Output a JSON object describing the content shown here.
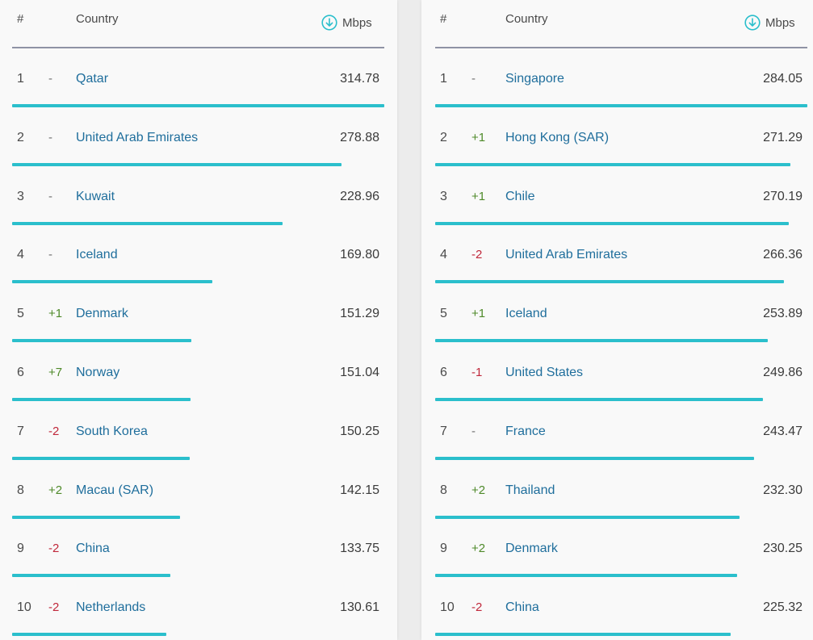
{
  "panels": [
    {
      "header": {
        "rank": "#",
        "country": "Country",
        "unit": "Mbps",
        "icon": "download-arrow-icon",
        "accent": "#2bbfcc"
      },
      "rows": [
        {
          "rank": "1",
          "change": "-",
          "trend": "same",
          "country": "Qatar",
          "value": "314.78",
          "bar_fraction": 1.0
        },
        {
          "rank": "2",
          "change": "-",
          "trend": "same",
          "country": "United Arab Emirates",
          "value": "278.88",
          "bar_fraction": 0.886
        },
        {
          "rank": "3",
          "change": "-",
          "trend": "same",
          "country": "Kuwait",
          "value": "228.96",
          "bar_fraction": 0.727
        },
        {
          "rank": "4",
          "change": "-",
          "trend": "same",
          "country": "Iceland",
          "value": "169.80",
          "bar_fraction": 0.539
        },
        {
          "rank": "5",
          "change": "+1",
          "trend": "up",
          "country": "Denmark",
          "value": "151.29",
          "bar_fraction": 0.481
        },
        {
          "rank": "6",
          "change": "+7",
          "trend": "up",
          "country": "Norway",
          "value": "151.04",
          "bar_fraction": 0.48
        },
        {
          "rank": "7",
          "change": "-2",
          "trend": "down",
          "country": "South Korea",
          "value": "150.25",
          "bar_fraction": 0.477
        },
        {
          "rank": "8",
          "change": "+2",
          "trend": "up",
          "country": "Macau (SAR)",
          "value": "142.15",
          "bar_fraction": 0.452
        },
        {
          "rank": "9",
          "change": "-2",
          "trend": "down",
          "country": "China",
          "value": "133.75",
          "bar_fraction": 0.425
        },
        {
          "rank": "10",
          "change": "-2",
          "trend": "down",
          "country": "Netherlands",
          "value": "130.61",
          "bar_fraction": 0.415
        }
      ]
    },
    {
      "header": {
        "rank": "#",
        "country": "Country",
        "unit": "Mbps",
        "icon": "download-arrow-icon",
        "accent": "#2bbfcc"
      },
      "rows": [
        {
          "rank": "1",
          "change": "-",
          "trend": "same",
          "country": "Singapore",
          "value": "284.05",
          "bar_fraction": 1.0
        },
        {
          "rank": "2",
          "change": "+1",
          "trend": "up",
          "country": "Hong Kong (SAR)",
          "value": "271.29",
          "bar_fraction": 0.955
        },
        {
          "rank": "3",
          "change": "+1",
          "trend": "up",
          "country": "Chile",
          "value": "270.19",
          "bar_fraction": 0.951
        },
        {
          "rank": "4",
          "change": "-2",
          "trend": "down",
          "country": "United Arab Emirates",
          "value": "266.36",
          "bar_fraction": 0.938
        },
        {
          "rank": "5",
          "change": "+1",
          "trend": "up",
          "country": "Iceland",
          "value": "253.89",
          "bar_fraction": 0.894
        },
        {
          "rank": "6",
          "change": "-1",
          "trend": "down",
          "country": "United States",
          "value": "249.86",
          "bar_fraction": 0.88
        },
        {
          "rank": "7",
          "change": "-",
          "trend": "same",
          "country": "France",
          "value": "243.47",
          "bar_fraction": 0.857
        },
        {
          "rank": "8",
          "change": "+2",
          "trend": "up",
          "country": "Thailand",
          "value": "232.30",
          "bar_fraction": 0.818
        },
        {
          "rank": "9",
          "change": "+2",
          "trend": "up",
          "country": "Denmark",
          "value": "230.25",
          "bar_fraction": 0.811
        },
        {
          "rank": "10",
          "change": "-2",
          "trend": "down",
          "country": "China",
          "value": "225.32",
          "bar_fraction": 0.793
        }
      ]
    }
  ],
  "colors": {
    "bar": "#2bbfcc",
    "country_link": "#1f6e9c",
    "trend_up": "#4f8a2a",
    "trend_down": "#c0283b",
    "trend_same": "#6f6f6f"
  }
}
